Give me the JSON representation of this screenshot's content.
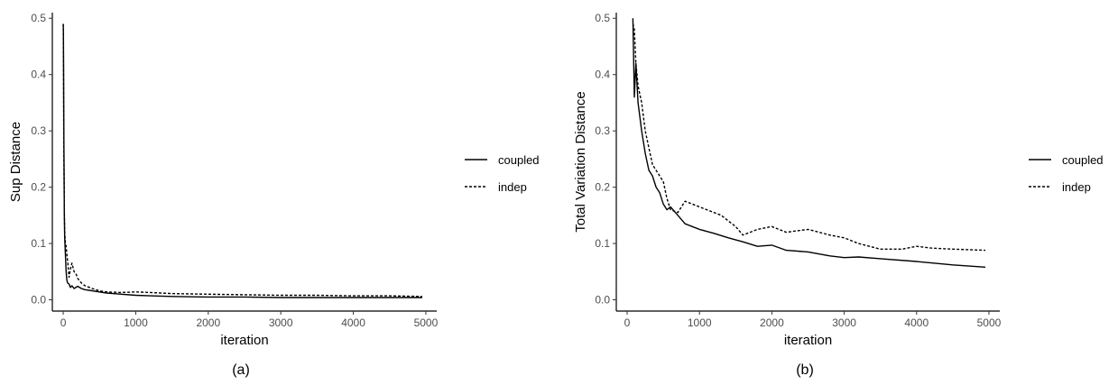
{
  "panels": [
    {
      "caption": "(a)",
      "legend": [
        {
          "label": "coupled",
          "dash": "solid"
        },
        {
          "label": "indep",
          "dash": "dotted"
        }
      ]
    },
    {
      "caption": "(b)",
      "legend": [
        {
          "label": "coupled",
          "dash": "solid"
        },
        {
          "label": "indep",
          "dash": "dotted"
        }
      ]
    }
  ],
  "chart_data": [
    {
      "type": "line",
      "xlabel": "iteration",
      "ylabel": "Sup Distance",
      "xlim": [
        -150,
        5150
      ],
      "ylim": [
        -0.02,
        0.51
      ],
      "xticks": [
        0,
        1000,
        2000,
        3000,
        4000,
        5000
      ],
      "yticks": [
        0.0,
        0.1,
        0.2,
        0.3,
        0.4,
        0.5
      ],
      "grid": false,
      "legend_position": "right",
      "series": [
        {
          "name": "coupled",
          "style": "solid",
          "x": [
            1,
            3,
            5,
            8,
            10,
            15,
            20,
            30,
            40,
            50,
            60,
            80,
            100,
            120,
            150,
            200,
            250,
            300,
            400,
            500,
            600,
            800,
            1000,
            1200,
            1500,
            2000,
            2500,
            3000,
            3500,
            4000,
            4500,
            4950
          ],
          "y": [
            0.49,
            0.47,
            0.4,
            0.32,
            0.26,
            0.15,
            0.11,
            0.08,
            0.05,
            0.035,
            0.03,
            0.028,
            0.022,
            0.025,
            0.02,
            0.024,
            0.02,
            0.018,
            0.016,
            0.014,
            0.012,
            0.01,
            0.008,
            0.007,
            0.006,
            0.005,
            0.005,
            0.004,
            0.004,
            0.004,
            0.004,
            0.004
          ]
        },
        {
          "name": "indep",
          "style": "dotted",
          "x": [
            1,
            3,
            5,
            8,
            10,
            15,
            20,
            30,
            40,
            50,
            60,
            80,
            100,
            120,
            150,
            180,
            200,
            250,
            300,
            400,
            500,
            600,
            800,
            1000,
            1200,
            1500,
            2000,
            2500,
            3000,
            3500,
            4000,
            4500,
            4950
          ],
          "y": [
            0.49,
            0.45,
            0.36,
            0.28,
            0.24,
            0.16,
            0.12,
            0.1,
            0.095,
            0.08,
            0.07,
            0.04,
            0.055,
            0.065,
            0.05,
            0.045,
            0.038,
            0.03,
            0.025,
            0.02,
            0.016,
            0.014,
            0.013,
            0.014,
            0.013,
            0.011,
            0.01,
            0.009,
            0.008,
            0.008,
            0.007,
            0.007,
            0.006
          ]
        }
      ]
    },
    {
      "type": "line",
      "xlabel": "iteration",
      "ylabel": "Total Variation Distance",
      "xlim": [
        -150,
        5150
      ],
      "ylim": [
        -0.02,
        0.51
      ],
      "xticks": [
        0,
        1000,
        2000,
        3000,
        4000,
        5000
      ],
      "yticks": [
        0.0,
        0.1,
        0.2,
        0.3,
        0.4,
        0.5
      ],
      "grid": false,
      "legend_position": "right",
      "series": [
        {
          "name": "coupled",
          "style": "solid",
          "x": [
            80,
            100,
            120,
            150,
            200,
            250,
            300,
            350,
            400,
            450,
            500,
            550,
            600,
            700,
            800,
            900,
            1000,
            1200,
            1400,
            1600,
            1800,
            2000,
            2200,
            2500,
            2800,
            3000,
            3200,
            3500,
            4000,
            4500,
            4950
          ],
          "y": [
            0.5,
            0.36,
            0.42,
            0.35,
            0.3,
            0.26,
            0.23,
            0.22,
            0.2,
            0.19,
            0.17,
            0.16,
            0.165,
            0.15,
            0.135,
            0.13,
            0.125,
            0.118,
            0.11,
            0.103,
            0.095,
            0.097,
            0.088,
            0.085,
            0.078,
            0.075,
            0.076,
            0.073,
            0.068,
            0.062,
            0.058
          ]
        },
        {
          "name": "indep",
          "style": "dotted",
          "x": [
            80,
            100,
            120,
            150,
            200,
            250,
            300,
            350,
            400,
            450,
            500,
            550,
            600,
            700,
            800,
            900,
            1000,
            1100,
            1200,
            1300,
            1400,
            1500,
            1600,
            1700,
            1800,
            2000,
            2200,
            2500,
            2800,
            3000,
            3200,
            3500,
            3800,
            4000,
            4200,
            4500,
            4950
          ],
          "y": [
            0.49,
            0.48,
            0.42,
            0.38,
            0.35,
            0.3,
            0.27,
            0.24,
            0.23,
            0.22,
            0.21,
            0.18,
            0.16,
            0.155,
            0.175,
            0.17,
            0.165,
            0.16,
            0.155,
            0.15,
            0.14,
            0.13,
            0.115,
            0.12,
            0.125,
            0.13,
            0.12,
            0.125,
            0.115,
            0.11,
            0.1,
            0.09,
            0.09,
            0.095,
            0.092,
            0.09,
            0.088
          ]
        }
      ]
    }
  ]
}
